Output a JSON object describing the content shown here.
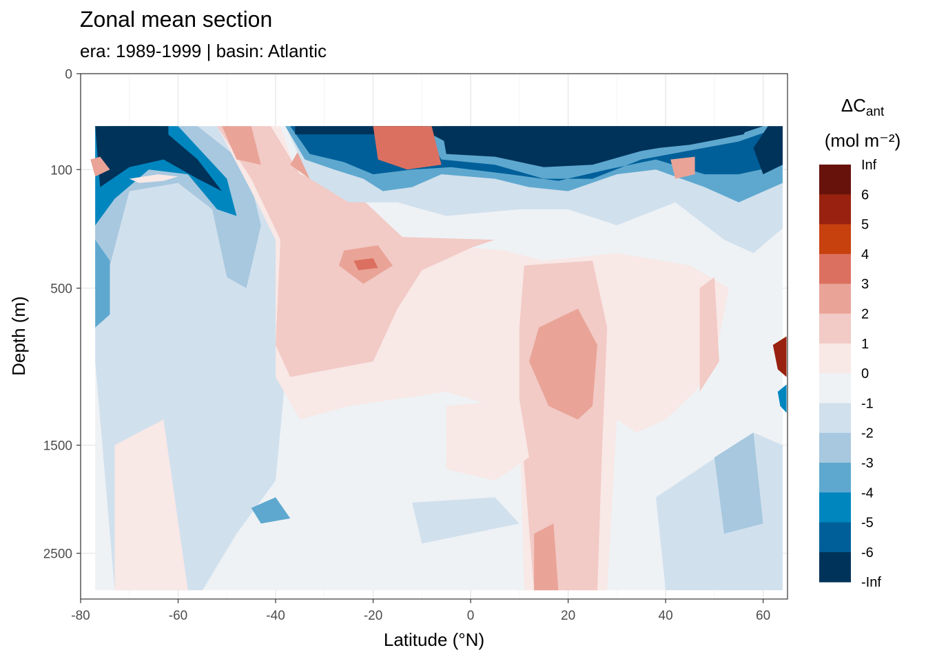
{
  "title": "Zonal mean section",
  "subtitle": "era:  1989-1999 | basin: Atlantic",
  "chart_data": {
    "type": "heatmap",
    "xlabel": "Latitude (°N)",
    "ylabel": "Depth (m)",
    "xlim": [
      -80,
      65
    ],
    "x_ticks": [
      -80,
      -60,
      -40,
      -20,
      0,
      20,
      40,
      60
    ],
    "x_tick_labels": [
      "-80",
      "-60",
      "-40",
      "-20",
      "0",
      "20",
      "40",
      "60"
    ],
    "y_scale": "sqrt, reversed",
    "ylim": [
      0,
      3000
    ],
    "y_ticks": [
      0,
      100,
      500,
      1500,
      2500
    ],
    "y_tick_labels": [
      "0",
      "100",
      "500",
      "1500",
      "2500"
    ],
    "grid": true,
    "legend": {
      "position": "right",
      "title_main": "ΔC",
      "title_sub": "ant",
      "title_units": "(mol m⁻²)",
      "breaks": [
        "Inf",
        "6",
        "5",
        "4",
        "3",
        "2",
        "1",
        "0",
        "-1",
        "-2",
        "-3",
        "-4",
        "-5",
        "-6",
        "-Inf"
      ],
      "colors": [
        "#67130c",
        "#98220f",
        "#c7410e",
        "#dc7060",
        "#e9a497",
        "#f2cac6",
        "#f8e8e6",
        "#eef2f5",
        "#d1e0ed",
        "#a7c8df",
        "#5ea8cf",
        "#0086bf",
        "#005f99",
        "#00335a"
      ]
    },
    "regions": [
      {
        "level": "-1",
        "points": [
          [
            -77,
            30
          ],
          [
            -44,
            30
          ],
          [
            -38,
            120
          ],
          [
            -40,
            300
          ],
          [
            -38,
            1000
          ],
          [
            -40,
            1800
          ],
          [
            -48,
            2300
          ],
          [
            -55,
            2900
          ],
          [
            -73,
            2900
          ],
          [
            -77,
            900
          ]
        ]
      },
      {
        "level": "-2",
        "points": [
          [
            -77,
            30
          ],
          [
            -56,
            30
          ],
          [
            -46,
            90
          ],
          [
            -43,
            250
          ],
          [
            -46,
            500
          ],
          [
            -50,
            450
          ],
          [
            -53,
            200
          ],
          [
            -60,
            130
          ],
          [
            -70,
            150
          ],
          [
            -74,
            400
          ],
          [
            -77,
            500
          ]
        ]
      },
      {
        "level": "-4",
        "points": [
          [
            -77,
            30
          ],
          [
            -60,
            30
          ],
          [
            -50,
            120
          ],
          [
            -48,
            220
          ],
          [
            -52,
            200
          ],
          [
            -58,
            110
          ],
          [
            -66,
            100
          ],
          [
            -73,
            170
          ],
          [
            -77,
            250
          ]
        ]
      },
      {
        "level": "-6",
        "points": [
          [
            -77,
            30
          ],
          [
            -64,
            30
          ],
          [
            -56,
            80
          ],
          [
            -51,
            150
          ],
          [
            -56,
            120
          ],
          [
            -63,
            80
          ],
          [
            -70,
            95
          ],
          [
            -76,
            140
          ]
        ]
      },
      {
        "level": "-Inf",
        "points": [
          [
            -74,
            30
          ],
          [
            -62,
            30
          ],
          [
            -62,
            50
          ],
          [
            -70,
            70
          ],
          [
            -74,
            60
          ]
        ]
      },
      {
        "level": "-3",
        "points": [
          [
            -77,
            300
          ],
          [
            -74,
            380
          ],
          [
            -74,
            630
          ],
          [
            -77,
            700
          ]
        ]
      },
      {
        "level": "3",
        "points": [
          [
            -78,
            80
          ],
          [
            -76,
            75
          ],
          [
            -74,
            100
          ],
          [
            -77,
            115
          ]
        ]
      },
      {
        "level": "1",
        "points": [
          [
            -70,
            120
          ],
          [
            -64,
            110
          ],
          [
            -60,
            115
          ],
          [
            -63,
            125
          ],
          [
            -68,
            130
          ]
        ]
      },
      {
        "level": "1",
        "points": [
          [
            -52,
            30
          ],
          [
            -39,
            30
          ],
          [
            -36,
            100
          ],
          [
            -26,
            120
          ],
          [
            -23,
            280
          ],
          [
            -14,
            320
          ],
          [
            1,
            330
          ],
          [
            7,
            340
          ],
          [
            15,
            380
          ],
          [
            30,
            350
          ],
          [
            45,
            400
          ],
          [
            53,
            500
          ],
          [
            50,
            900
          ],
          [
            46,
            1100
          ],
          [
            40,
            1300
          ],
          [
            34,
            1400
          ],
          [
            30,
            1300
          ],
          [
            28,
            2900
          ],
          [
            11,
            2900
          ],
          [
            10,
            1300
          ],
          [
            5,
            1200
          ],
          [
            -5,
            1100
          ],
          [
            -25,
            1200
          ],
          [
            -35,
            1300
          ],
          [
            -40,
            1000
          ],
          [
            -40,
            300
          ],
          [
            -45,
            150
          ]
        ]
      },
      {
        "level": "2",
        "points": [
          [
            -52,
            30
          ],
          [
            -41,
            30
          ],
          [
            -35,
            110
          ],
          [
            -24,
            150
          ],
          [
            -14,
            290
          ],
          [
            5,
            300
          ],
          [
            0,
            330
          ],
          [
            -10,
            420
          ],
          [
            -15,
            600
          ],
          [
            -20,
            900
          ],
          [
            -37,
            1000
          ],
          [
            -40,
            800
          ],
          [
            -39,
            300
          ],
          [
            -45,
            120
          ]
        ]
      },
      {
        "level": "3",
        "points": [
          [
            -51,
            30
          ],
          [
            -45,
            30
          ],
          [
            -43,
            90
          ],
          [
            -48,
            80
          ]
        ]
      },
      {
        "level": "3",
        "points": [
          [
            -35,
            60
          ],
          [
            -29,
            90
          ],
          [
            -26,
            130
          ],
          [
            -33,
            120
          ],
          [
            -37,
            90
          ]
        ]
      },
      {
        "level": "3",
        "points": [
          [
            -26,
            340
          ],
          [
            -19,
            320
          ],
          [
            -16,
            400
          ],
          [
            -22,
            480
          ],
          [
            -27,
            400
          ]
        ]
      },
      {
        "level": "4",
        "points": [
          [
            -24,
            380
          ],
          [
            -20,
            370
          ],
          [
            -19,
            410
          ],
          [
            -23,
            420
          ]
        ]
      },
      {
        "level": "2",
        "points": [
          [
            11,
            400
          ],
          [
            25,
            380
          ],
          [
            28,
            700
          ],
          [
            27,
            1500
          ],
          [
            26,
            2900
          ],
          [
            13,
            2900
          ],
          [
            10,
            1200
          ],
          [
            10,
            700
          ]
        ]
      },
      {
        "level": "3",
        "points": [
          [
            14,
            700
          ],
          [
            22,
            600
          ],
          [
            26,
            800
          ],
          [
            25,
            1200
          ],
          [
            22,
            1300
          ],
          [
            16,
            1200
          ],
          [
            12,
            900
          ]
        ]
      },
      {
        "level": "3",
        "points": [
          [
            13,
            2300
          ],
          [
            17,
            2200
          ],
          [
            18,
            2900
          ],
          [
            13,
            2900
          ]
        ]
      },
      {
        "level": "1",
        "points": [
          [
            -5,
            1200
          ],
          [
            10,
            1150
          ],
          [
            12,
            1600
          ],
          [
            5,
            1800
          ],
          [
            -5,
            1700
          ]
        ]
      },
      {
        "level": "2",
        "points": [
          [
            47,
            500
          ],
          [
            50,
            450
          ],
          [
            51,
            900
          ],
          [
            47,
            1100
          ]
        ]
      },
      {
        "level": "1",
        "points": [
          [
            -73,
            1500
          ],
          [
            -63,
            1300
          ],
          [
            -58,
            2900
          ],
          [
            -73,
            2900
          ]
        ]
      },
      {
        "level": "-1",
        "points": [
          [
            -38,
            30
          ],
          [
            64,
            30
          ],
          [
            64,
            260
          ],
          [
            58,
            350
          ],
          [
            52,
            300
          ],
          [
            42,
            180
          ],
          [
            30,
            250
          ],
          [
            20,
            200
          ],
          [
            10,
            200
          ],
          [
            -5,
            220
          ],
          [
            -15,
            180
          ],
          [
            -25,
            180
          ],
          [
            -33,
            120
          ]
        ]
      },
      {
        "level": "-3",
        "points": [
          [
            -38,
            30
          ],
          [
            64,
            30
          ],
          [
            64,
            130
          ],
          [
            55,
            180
          ],
          [
            48,
            140
          ],
          [
            38,
            100
          ],
          [
            30,
            110
          ],
          [
            20,
            150
          ],
          [
            12,
            140
          ],
          [
            5,
            120
          ],
          [
            -6,
            110
          ],
          [
            -12,
            140
          ],
          [
            -18,
            150
          ],
          [
            -22,
            120
          ],
          [
            -28,
            100
          ],
          [
            -34,
            80
          ]
        ]
      },
      {
        "level": "-5",
        "points": [
          [
            -37,
            30
          ],
          [
            -10,
            30
          ],
          [
            -6,
            80
          ],
          [
            5,
            90
          ],
          [
            15,
            120
          ],
          [
            25,
            120
          ],
          [
            35,
            80
          ],
          [
            55,
            50
          ],
          [
            64,
            30
          ],
          [
            64,
            90
          ],
          [
            55,
            110
          ],
          [
            48,
            110
          ],
          [
            38,
            80
          ],
          [
            28,
            100
          ],
          [
            18,
            125
          ],
          [
            8,
            110
          ],
          [
            -4,
            95
          ],
          [
            -12,
            100
          ],
          [
            -20,
            110
          ],
          [
            -26,
            85
          ],
          [
            -33,
            70
          ]
        ]
      },
      {
        "level": "-Inf",
        "points": [
          [
            -36,
            30
          ],
          [
            -6,
            30
          ],
          [
            -5,
            70
          ],
          [
            5,
            75
          ],
          [
            15,
            95
          ],
          [
            25,
            90
          ],
          [
            35,
            65
          ],
          [
            55,
            40
          ],
          [
            60,
            30
          ],
          [
            58,
            30
          ]
        ]
      },
      {
        "level": "-Inf",
        "points": [
          [
            -36,
            30
          ],
          [
            57,
            30
          ],
          [
            56,
            40
          ],
          [
            45,
            55
          ],
          [
            36,
            62
          ],
          [
            28,
            75
          ],
          [
            18,
            92
          ],
          [
            8,
            75
          ],
          [
            -4,
            55
          ],
          [
            -8,
            40
          ],
          [
            -36,
            40
          ]
        ]
      },
      {
        "level": "-3",
        "points": [
          [
            -45,
            2050
          ],
          [
            -40,
            1950
          ],
          [
            -37,
            2150
          ],
          [
            -43,
            2200
          ]
        ]
      },
      {
        "level": "-1",
        "points": [
          [
            -12,
            2000
          ],
          [
            5,
            1950
          ],
          [
            10,
            2200
          ],
          [
            -10,
            2400
          ]
        ]
      },
      {
        "level": "-1",
        "points": [
          [
            38,
            1950
          ],
          [
            58,
            1400
          ],
          [
            64,
            1500
          ],
          [
            64,
            2900
          ],
          [
            40,
            2900
          ]
        ]
      },
      {
        "level": "-2",
        "points": [
          [
            50,
            1600
          ],
          [
            58,
            1400
          ],
          [
            60,
            2200
          ],
          [
            52,
            2300
          ]
        ]
      },
      {
        "level": "6",
        "points": [
          [
            -19,
            30
          ],
          [
            -10,
            30
          ],
          [
            -8,
            70
          ],
          [
            -13,
            80
          ],
          [
            -18,
            60
          ]
        ]
      },
      {
        "level": "4",
        "points": [
          [
            -20,
            30
          ],
          [
            -8,
            30
          ],
          [
            -6,
            90
          ],
          [
            -13,
            100
          ],
          [
            -19,
            80
          ]
        ]
      },
      {
        "level": "3",
        "points": [
          [
            41,
            80
          ],
          [
            46,
            75
          ],
          [
            46,
            110
          ],
          [
            42,
            120
          ]
        ]
      },
      {
        "level": "-6",
        "points": [
          [
            61,
            30
          ],
          [
            64,
            30
          ],
          [
            64,
            90
          ],
          [
            60,
            110
          ],
          [
            58,
            60
          ]
        ]
      },
      {
        "level": "6",
        "points": [
          [
            62,
            800
          ],
          [
            64.8,
            750
          ],
          [
            64.8,
            1000
          ],
          [
            63,
            950
          ]
        ]
      },
      {
        "level": "-4",
        "points": [
          [
            63,
            1100
          ],
          [
            64.8,
            1050
          ],
          [
            64.8,
            1250
          ],
          [
            63.5,
            1200
          ]
        ]
      }
    ]
  }
}
